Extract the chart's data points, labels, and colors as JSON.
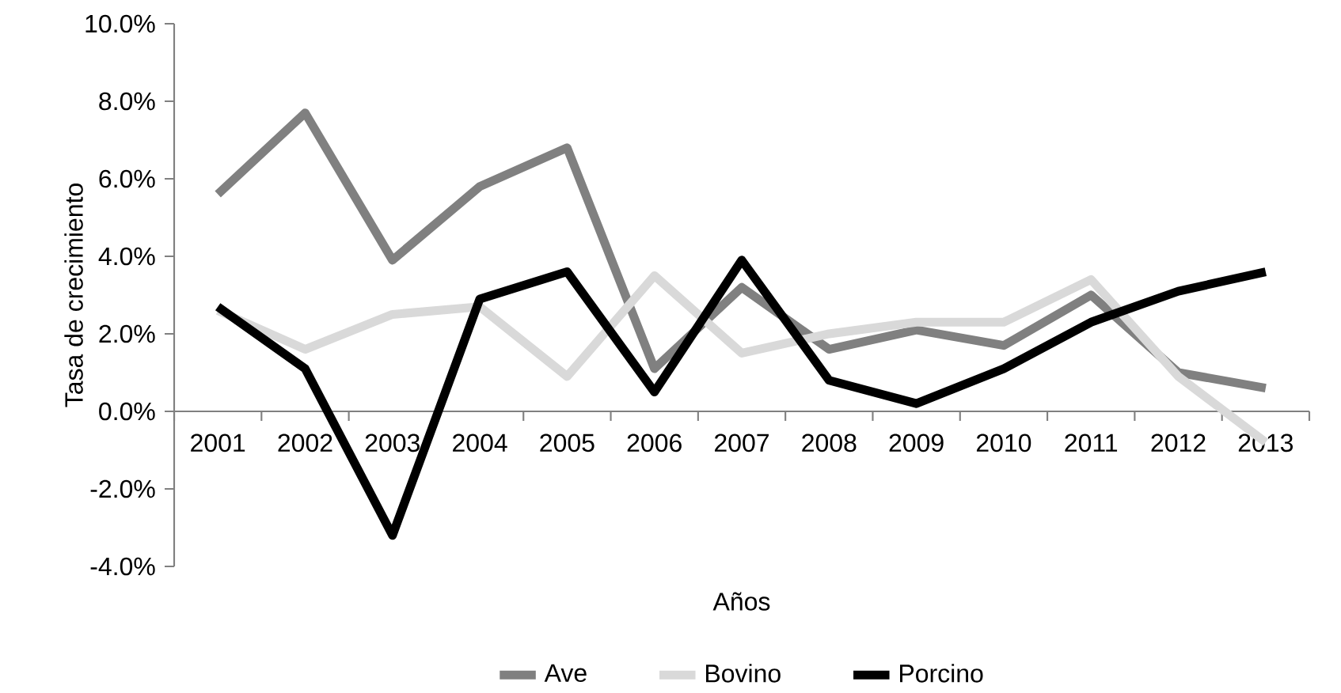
{
  "chart_data": {
    "type": "line",
    "xlabel": "Años",
    "ylabel": "Tasa de crecimiento",
    "categories": [
      "2001",
      "2002",
      "2003",
      "2004",
      "2005",
      "2006",
      "2007",
      "2008",
      "2009",
      "2010",
      "2011",
      "2012",
      "2013"
    ],
    "series": [
      {
        "name": "Ave",
        "color": "#808080",
        "values": [
          5.6,
          7.7,
          3.9,
          5.8,
          6.8,
          1.1,
          3.2,
          1.6,
          2.1,
          1.7,
          3.0,
          1.0,
          0.6
        ]
      },
      {
        "name": "Bovino",
        "color": "#d9d9d9",
        "values": [
          2.6,
          1.6,
          2.5,
          2.7,
          0.9,
          3.5,
          1.5,
          2.0,
          2.3,
          2.3,
          3.4,
          0.9,
          -0.8
        ]
      },
      {
        "name": "Porcino",
        "color": "#000000",
        "values": [
          2.7,
          1.1,
          -3.2,
          2.9,
          3.6,
          0.5,
          3.9,
          0.8,
          0.2,
          1.1,
          2.3,
          3.1,
          3.6
        ]
      }
    ],
    "ylim": [
      -4,
      10
    ],
    "yticks": [
      {
        "value": -4,
        "label": "-4.0%"
      },
      {
        "value": -2,
        "label": "-2.0%"
      },
      {
        "value": 0,
        "label": "0.0%"
      },
      {
        "value": 2,
        "label": "2.0%"
      },
      {
        "value": 4,
        "label": "4.0%"
      },
      {
        "value": 6,
        "label": "6.0%"
      },
      {
        "value": 8,
        "label": "8.0%"
      },
      {
        "value": 10,
        "label": "10.0%"
      }
    ],
    "grid": false,
    "legend": "bottom",
    "marker": "none",
    "line_style": "solid"
  }
}
